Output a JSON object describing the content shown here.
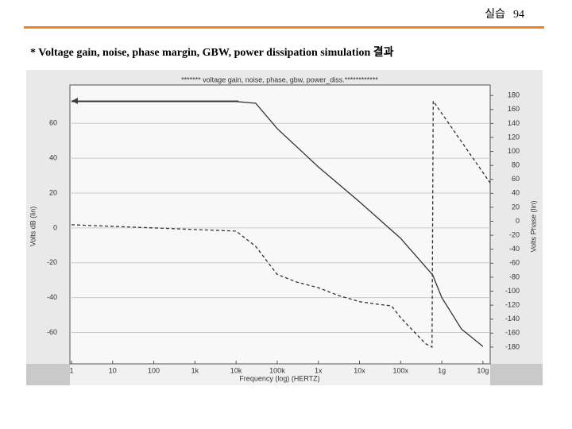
{
  "header": {
    "section": "실습",
    "page": 94
  },
  "heading": "* Voltage gain, noise, phase margin, GBW, power dissipation simulation  결과",
  "chart_data": {
    "type": "line",
    "title": "******* voltage gain, noise, phase, gbw, power_diss.************",
    "xlabel": "Frequency (log) (HERTZ)",
    "ylabel": "Volts dB (lin)",
    "y2label": "Volts Phase (lin)",
    "xscale": "log",
    "grid": true,
    "xlim": [
      1,
      15000000000
    ],
    "xticks": [
      1,
      10,
      100,
      {
        "value": 1000,
        "label": "1k"
      },
      {
        "value": 10000,
        "label": "10k"
      },
      {
        "value": 100000,
        "label": "100k"
      },
      {
        "value": 1000000,
        "label": "1x"
      },
      {
        "value": 10000000,
        "label": "10x"
      },
      {
        "value": 100000000,
        "label": "100x"
      },
      {
        "value": 1000000000,
        "label": "1g"
      },
      {
        "value": 10000000000,
        "label": "10g"
      }
    ],
    "ylim": [
      -78,
      82
    ],
    "yticks": [
      -60,
      -40,
      -20,
      0,
      20,
      40,
      60
    ],
    "y2lim": [
      -204,
      195
    ],
    "y2ticks": [
      -180,
      -160,
      -140,
      -120,
      -100,
      -80,
      -60,
      -40,
      -20,
      0,
      20,
      40,
      60,
      80,
      100,
      120,
      140,
      160,
      180
    ],
    "series": [
      {
        "color": "#333333",
        "line_style": "solid",
        "x": [
          1,
          10000,
          30000,
          100000,
          1000000,
          10000000,
          100000000,
          600000000,
          1000000000,
          3000000000,
          10000000000
        ],
        "values": [
          72.5,
          72.5,
          71.5,
          57,
          35,
          15,
          -6,
          -27,
          -40,
          -58,
          -68
        ]
      },
      {
        "color": "#333333",
        "line_style": "dashed",
        "axis": "y2",
        "x": [
          1,
          10000,
          30000,
          100000,
          300000,
          1000000,
          3000000,
          10000000,
          30000000,
          60000000,
          100000000,
          400000000,
          580000000,
          620000000,
          15000000000
        ],
        "values": [
          -5,
          -14,
          -36,
          -76,
          -87,
          -95,
          -106,
          -115,
          -119,
          -121,
          -138,
          -175,
          -180,
          172,
          55
        ]
      }
    ]
  }
}
